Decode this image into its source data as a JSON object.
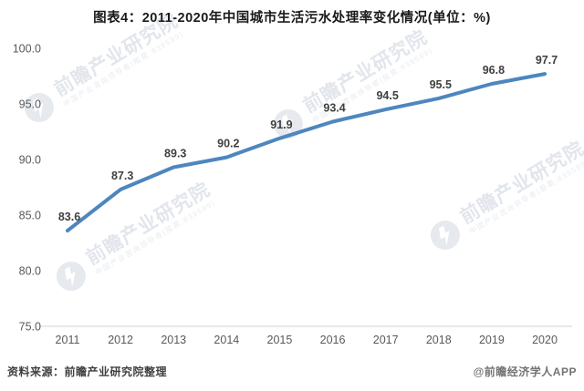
{
  "title": "图表4：2011-2020年中国城市生活污水处理率变化情况(单位：%)",
  "watermark": {
    "line1": "前瞻产业研究院",
    "line2": "中国产业咨询领导者(股票:839599)",
    "logo_color": "#e6e9ee"
  },
  "footer": {
    "source": "资料来源：前瞻产业研究院整理",
    "credit": "@前瞻经济学人APP"
  },
  "chart_data": {
    "type": "line",
    "title": "图表4：2011-2020年中国城市生活污水处理率变化情况(单位：%)",
    "categories": [
      "2011",
      "2012",
      "2013",
      "2014",
      "2015",
      "2016",
      "2017",
      "2018",
      "2019",
      "2020"
    ],
    "values": [
      83.6,
      87.3,
      89.3,
      90.2,
      91.9,
      93.4,
      94.5,
      95.5,
      96.8,
      97.7
    ],
    "data_labels": [
      "83.6",
      "87.3",
      "89.3",
      "90.2",
      "91.9",
      "93.4",
      "94.5",
      "95.5",
      "96.8",
      "97.7"
    ],
    "yticks": [
      75.0,
      80.0,
      85.0,
      90.0,
      95.0,
      100.0
    ],
    "ylim": [
      75.0,
      100.0
    ],
    "xlabel": "",
    "ylabel": "",
    "grid": false,
    "legend_position": "none",
    "line_color": "#4e86be",
    "axis_line_color": "#d9d9d9",
    "tick_label_color": "#595959",
    "data_label_color": "#3f3f3f"
  }
}
